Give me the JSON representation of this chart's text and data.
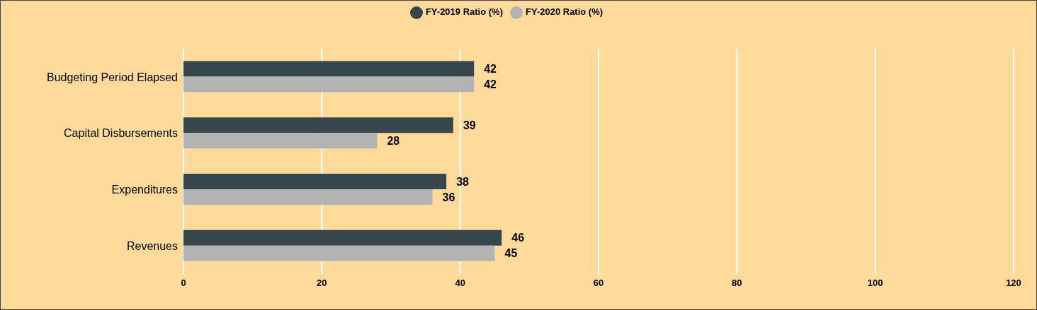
{
  "chart_data": {
    "type": "bar",
    "orientation": "horizontal",
    "categories": [
      "Budgeting Period Elapsed",
      "Capital Disbursements",
      "Expenditures",
      "Revenues"
    ],
    "series": [
      {
        "name": "FY-2019 Ratio (%)",
        "color": "#36464a",
        "values": [
          42,
          39,
          38,
          46
        ]
      },
      {
        "name": "FY-2020 Ratio (%)",
        "color": "#b3b3b3",
        "values": [
          42,
          28,
          36,
          45
        ]
      }
    ],
    "xlim": [
      0,
      120
    ],
    "xticks": [
      0,
      20,
      40,
      60,
      80,
      100,
      120
    ],
    "grid": "x",
    "legend": "top",
    "data_labels": true
  }
}
